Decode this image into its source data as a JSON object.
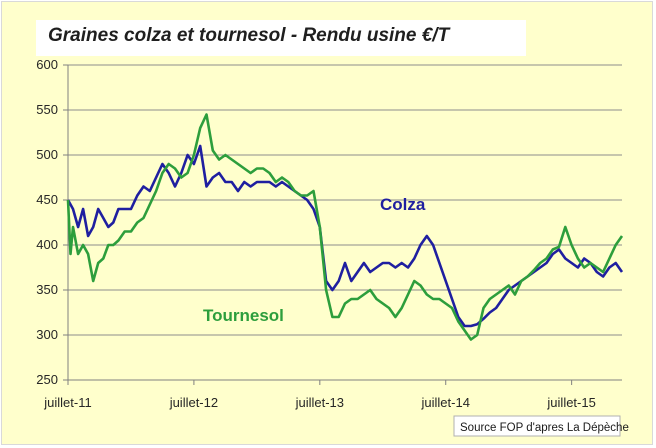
{
  "chart_data": {
    "type": "line",
    "title": "Graines colza et  tournesol - Rendu usine €/T",
    "ylim": [
      250,
      600
    ],
    "y_ticks": [
      250,
      300,
      350,
      400,
      450,
      500,
      550,
      600
    ],
    "xlim": [
      0,
      4.4
    ],
    "x_ticks": [
      {
        "value": 0,
        "label": "juillet-11"
      },
      {
        "value": 1,
        "label": "juillet-12"
      },
      {
        "value": 2,
        "label": "juillet-13"
      },
      {
        "value": 3,
        "label": "juillet-14"
      },
      {
        "value": 4,
        "label": "juillet-15"
      }
    ],
    "x_unit": "years since juillet-11",
    "grid": "horizontal",
    "source": "Source FOP d'apres La Dépèche",
    "series": [
      {
        "name": "Colza",
        "color": "#1f1fa0",
        "points": [
          [
            0.0,
            450
          ],
          [
            0.04,
            440
          ],
          [
            0.08,
            420
          ],
          [
            0.12,
            440
          ],
          [
            0.16,
            410
          ],
          [
            0.2,
            420
          ],
          [
            0.24,
            440
          ],
          [
            0.28,
            430
          ],
          [
            0.32,
            420
          ],
          [
            0.36,
            425
          ],
          [
            0.4,
            440
          ],
          [
            0.45,
            440
          ],
          [
            0.5,
            440
          ],
          [
            0.55,
            455
          ],
          [
            0.6,
            465
          ],
          [
            0.65,
            460
          ],
          [
            0.7,
            475
          ],
          [
            0.75,
            490
          ],
          [
            0.8,
            480
          ],
          [
            0.85,
            465
          ],
          [
            0.9,
            480
          ],
          [
            0.95,
            500
          ],
          [
            1.0,
            490
          ],
          [
            1.05,
            510
          ],
          [
            1.1,
            465
          ],
          [
            1.15,
            475
          ],
          [
            1.2,
            480
          ],
          [
            1.25,
            470
          ],
          [
            1.3,
            470
          ],
          [
            1.35,
            460
          ],
          [
            1.4,
            470
          ],
          [
            1.45,
            465
          ],
          [
            1.5,
            470
          ],
          [
            1.55,
            470
          ],
          [
            1.6,
            470
          ],
          [
            1.65,
            465
          ],
          [
            1.7,
            470
          ],
          [
            1.75,
            465
          ],
          [
            1.8,
            460
          ],
          [
            1.85,
            455
          ],
          [
            1.9,
            450
          ],
          [
            1.95,
            440
          ],
          [
            2.0,
            420
          ],
          [
            2.05,
            360
          ],
          [
            2.1,
            350
          ],
          [
            2.15,
            360
          ],
          [
            2.2,
            380
          ],
          [
            2.25,
            360
          ],
          [
            2.3,
            370
          ],
          [
            2.35,
            380
          ],
          [
            2.4,
            370
          ],
          [
            2.45,
            375
          ],
          [
            2.5,
            380
          ],
          [
            2.55,
            380
          ],
          [
            2.6,
            375
          ],
          [
            2.65,
            380
          ],
          [
            2.7,
            375
          ],
          [
            2.75,
            385
          ],
          [
            2.8,
            400
          ],
          [
            2.85,
            410
          ],
          [
            2.9,
            400
          ],
          [
            2.95,
            380
          ],
          [
            3.0,
            360
          ],
          [
            3.05,
            340
          ],
          [
            3.1,
            320
          ],
          [
            3.15,
            310
          ],
          [
            3.2,
            310
          ],
          [
            3.25,
            312
          ],
          [
            3.3,
            318
          ],
          [
            3.35,
            325
          ],
          [
            3.4,
            330
          ],
          [
            3.45,
            340
          ],
          [
            3.5,
            350
          ],
          [
            3.55,
            355
          ],
          [
            3.6,
            360
          ],
          [
            3.65,
            365
          ],
          [
            3.7,
            370
          ],
          [
            3.75,
            375
          ],
          [
            3.8,
            380
          ],
          [
            3.85,
            390
          ],
          [
            3.9,
            395
          ],
          [
            3.95,
            385
          ],
          [
            4.0,
            380
          ],
          [
            4.05,
            375
          ],
          [
            4.1,
            385
          ],
          [
            4.15,
            380
          ],
          [
            4.2,
            370
          ],
          [
            4.25,
            365
          ],
          [
            4.3,
            375
          ],
          [
            4.35,
            380
          ],
          [
            4.4,
            370
          ]
        ]
      },
      {
        "name": "Tournesol",
        "color": "#2d9e3c",
        "points": [
          [
            0.0,
            450
          ],
          [
            0.02,
            390
          ],
          [
            0.04,
            420
          ],
          [
            0.08,
            390
          ],
          [
            0.12,
            400
          ],
          [
            0.16,
            390
          ],
          [
            0.2,
            360
          ],
          [
            0.24,
            380
          ],
          [
            0.28,
            385
          ],
          [
            0.32,
            400
          ],
          [
            0.36,
            400
          ],
          [
            0.4,
            405
          ],
          [
            0.45,
            415
          ],
          [
            0.5,
            415
          ],
          [
            0.55,
            425
          ],
          [
            0.6,
            430
          ],
          [
            0.65,
            445
          ],
          [
            0.7,
            460
          ],
          [
            0.75,
            480
          ],
          [
            0.8,
            490
          ],
          [
            0.85,
            485
          ],
          [
            0.9,
            475
          ],
          [
            0.95,
            480
          ],
          [
            1.0,
            500
          ],
          [
            1.05,
            530
          ],
          [
            1.1,
            545
          ],
          [
            1.15,
            505
          ],
          [
            1.2,
            495
          ],
          [
            1.25,
            500
          ],
          [
            1.3,
            495
          ],
          [
            1.35,
            490
          ],
          [
            1.4,
            485
          ],
          [
            1.45,
            480
          ],
          [
            1.5,
            485
          ],
          [
            1.55,
            485
          ],
          [
            1.6,
            480
          ],
          [
            1.65,
            470
          ],
          [
            1.7,
            475
          ],
          [
            1.75,
            470
          ],
          [
            1.8,
            460
          ],
          [
            1.85,
            455
          ],
          [
            1.9,
            455
          ],
          [
            1.95,
            460
          ],
          [
            2.0,
            420
          ],
          [
            2.05,
            350
          ],
          [
            2.1,
            320
          ],
          [
            2.15,
            320
          ],
          [
            2.2,
            335
          ],
          [
            2.25,
            340
          ],
          [
            2.3,
            340
          ],
          [
            2.35,
            345
          ],
          [
            2.4,
            350
          ],
          [
            2.45,
            340
          ],
          [
            2.5,
            335
          ],
          [
            2.55,
            330
          ],
          [
            2.6,
            320
          ],
          [
            2.65,
            330
          ],
          [
            2.7,
            345
          ],
          [
            2.75,
            360
          ],
          [
            2.8,
            355
          ],
          [
            2.85,
            345
          ],
          [
            2.9,
            340
          ],
          [
            2.95,
            340
          ],
          [
            3.0,
            335
          ],
          [
            3.05,
            330
          ],
          [
            3.1,
            315
          ],
          [
            3.15,
            305
          ],
          [
            3.2,
            295
          ],
          [
            3.25,
            300
          ],
          [
            3.3,
            330
          ],
          [
            3.35,
            340
          ],
          [
            3.4,
            345
          ],
          [
            3.45,
            350
          ],
          [
            3.5,
            355
          ],
          [
            3.55,
            345
          ],
          [
            3.6,
            360
          ],
          [
            3.65,
            365
          ],
          [
            3.7,
            372
          ],
          [
            3.75,
            380
          ],
          [
            3.8,
            385
          ],
          [
            3.85,
            395
          ],
          [
            3.9,
            398
          ],
          [
            3.95,
            420
          ],
          [
            4.0,
            400
          ],
          [
            4.05,
            385
          ],
          [
            4.1,
            375
          ],
          [
            4.15,
            380
          ],
          [
            4.2,
            375
          ],
          [
            4.25,
            370
          ],
          [
            4.3,
            385
          ],
          [
            4.35,
            400
          ],
          [
            4.4,
            410
          ]
        ]
      }
    ]
  }
}
